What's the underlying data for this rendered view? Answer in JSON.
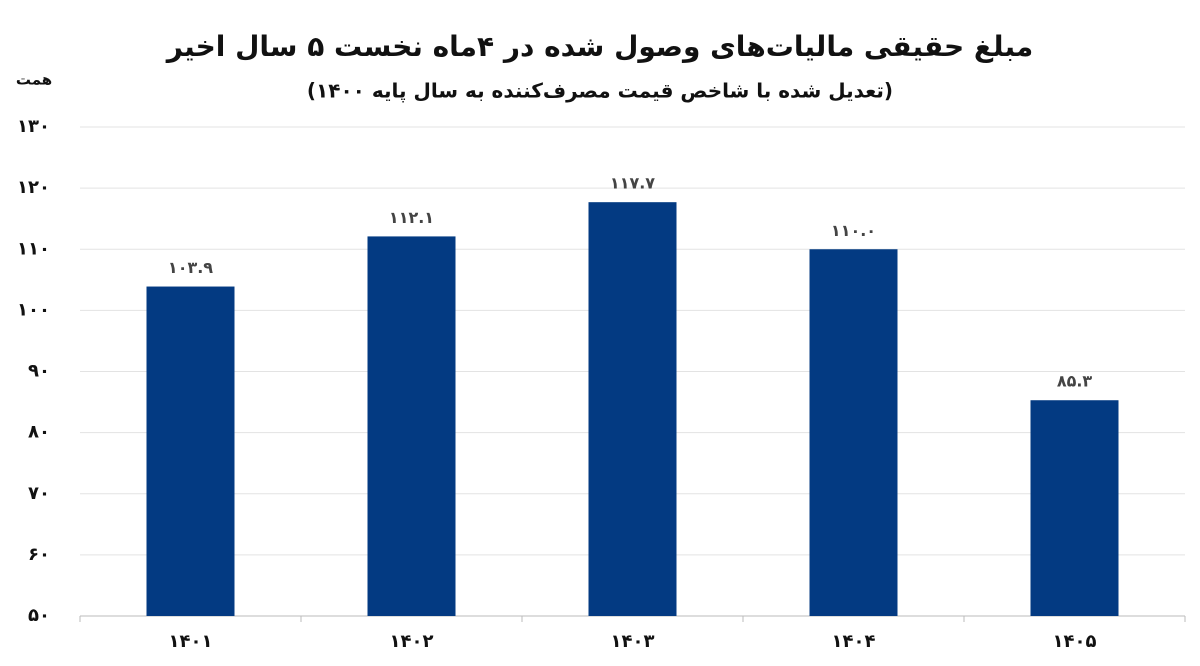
{
  "chart_data": {
    "type": "bar",
    "title": "مبلغ حقیقی مالیات‌های وصول شده در ۴ماه نخست ۵ سال اخیر",
    "subtitle": "(تعدیل شده با شاخص قیمت مصرف‌کننده به سال پایه ۱۴۰۰)",
    "y_label": "همت",
    "categories": [
      "۱۴۰۱",
      "۱۴۰۲",
      "۱۴۰۳",
      "۱۴۰۴",
      "۱۴۰۵"
    ],
    "values": [
      103.9,
      112.1,
      117.7,
      110.0,
      85.3
    ],
    "value_labels": [
      "۱۰۳.۹",
      "۱۱۲.۱",
      "۱۱۷.۷",
      "۱۱۰.۰",
      "۸۵.۳"
    ],
    "color": "#033a82",
    "ylim": [
      50,
      130
    ],
    "yticks": [
      {
        "value": 50,
        "label": "۵۰"
      },
      {
        "value": 60,
        "label": "۶۰"
      },
      {
        "value": 70,
        "label": "۷۰"
      },
      {
        "value": 80,
        "label": "۸۰"
      },
      {
        "value": 90,
        "label": "۹۰"
      },
      {
        "value": 100,
        "label": "۱۰۰"
      },
      {
        "value": 110,
        "label": "۱۱۰"
      },
      {
        "value": 120,
        "label": "۱۲۰"
      },
      {
        "value": 130,
        "label": "۱۳۰"
      }
    ],
    "grid": true
  }
}
